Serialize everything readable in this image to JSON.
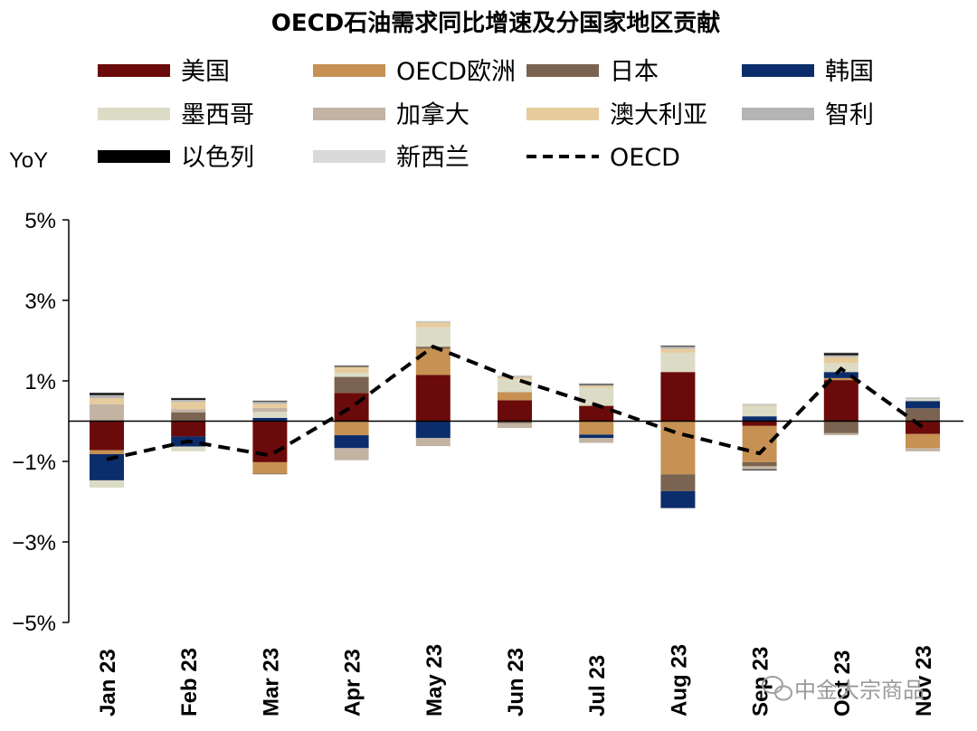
{
  "watermark": "中金大宗商品",
  "chart_data": {
    "type": "bar",
    "stacked": true,
    "title": "OECD石油需求同比增速及分国家地区贡献",
    "ylabel": "YoY",
    "ylim": [
      -5,
      5
    ],
    "yticks": [
      5,
      3,
      1,
      -1,
      -3,
      -5
    ],
    "ytick_labels": [
      "5%",
      "3%",
      "1%",
      "−1%",
      "−3%",
      "−5%"
    ],
    "categories": [
      "Jan 23",
      "Feb 23",
      "Mar 23",
      "Apr 23",
      "May 23",
      "Jun 23",
      "Jul 23",
      "Aug 23",
      "Sep 23",
      "Oct 23",
      "Nov 23"
    ],
    "series": [
      {
        "name": "美国",
        "color": "#6b0a0a",
        "values": [
          -0.72,
          -0.38,
          -1.02,
          0.7,
          1.15,
          0.52,
          0.38,
          1.22,
          -0.12,
          1.02,
          -0.32
        ]
      },
      {
        "name": "OECD欧洲",
        "color": "#c69152",
        "values": [
          -0.1,
          0.02,
          -0.28,
          -0.35,
          0.65,
          0.2,
          -0.32,
          -1.32,
          -0.9,
          0.05,
          -0.35
        ]
      },
      {
        "name": "日本",
        "color": "#7a6350",
        "values": [
          0.02,
          0.2,
          -0.02,
          0.4,
          0.05,
          -0.05,
          -0.02,
          -0.42,
          -0.1,
          -0.3,
          0.32
        ]
      },
      {
        "name": "韩国",
        "color": "#0c2d6b",
        "values": [
          -0.65,
          -0.25,
          0.08,
          -0.32,
          -0.42,
          0.0,
          -0.08,
          -0.42,
          0.12,
          0.15,
          0.18
        ]
      },
      {
        "name": "墨西哥",
        "color": "#dcdcc6",
        "values": [
          -0.18,
          -0.12,
          0.15,
          0.1,
          0.48,
          0.32,
          0.45,
          0.48,
          0.25,
          0.22,
          0.05
        ]
      },
      {
        "name": "加拿大",
        "color": "#c2b3a3",
        "values": [
          0.4,
          0.08,
          0.1,
          -0.3,
          -0.2,
          -0.12,
          -0.12,
          0.0,
          -0.08,
          -0.05,
          -0.08
        ]
      },
      {
        "name": "澳大利亚",
        "color": "#e6cb9c",
        "values": [
          0.15,
          0.18,
          0.1,
          0.15,
          0.12,
          0.05,
          0.05,
          0.1,
          0.02,
          0.15,
          0.0
        ]
      },
      {
        "name": "智利",
        "color": "#b4b4b4",
        "values": [
          0.08,
          0.05,
          0.05,
          0.0,
          0.02,
          0.02,
          0.02,
          0.05,
          0.02,
          0.05,
          0.02
        ]
      },
      {
        "name": "以色列",
        "color": "#000000",
        "values": [
          0.05,
          0.04,
          0.02,
          0.02,
          0.0,
          0.0,
          0.02,
          0.02,
          -0.02,
          0.05,
          0.0
        ]
      },
      {
        "name": "新西兰",
        "color": "#d9d9d9",
        "values": [
          0.02,
          0.02,
          0.02,
          0.03,
          0.02,
          0.03,
          0.03,
          0.02,
          0.03,
          0.03,
          0.03
        ]
      }
    ],
    "line": {
      "name": "OECD",
      "color": "#000000",
      "style": "dashed",
      "values": [
        -0.95,
        -0.5,
        -0.85,
        0.35,
        1.85,
        1.05,
        0.4,
        -0.3,
        -0.8,
        1.3,
        -0.15
      ]
    },
    "legend": {
      "position": "top",
      "columns": 4
    }
  }
}
